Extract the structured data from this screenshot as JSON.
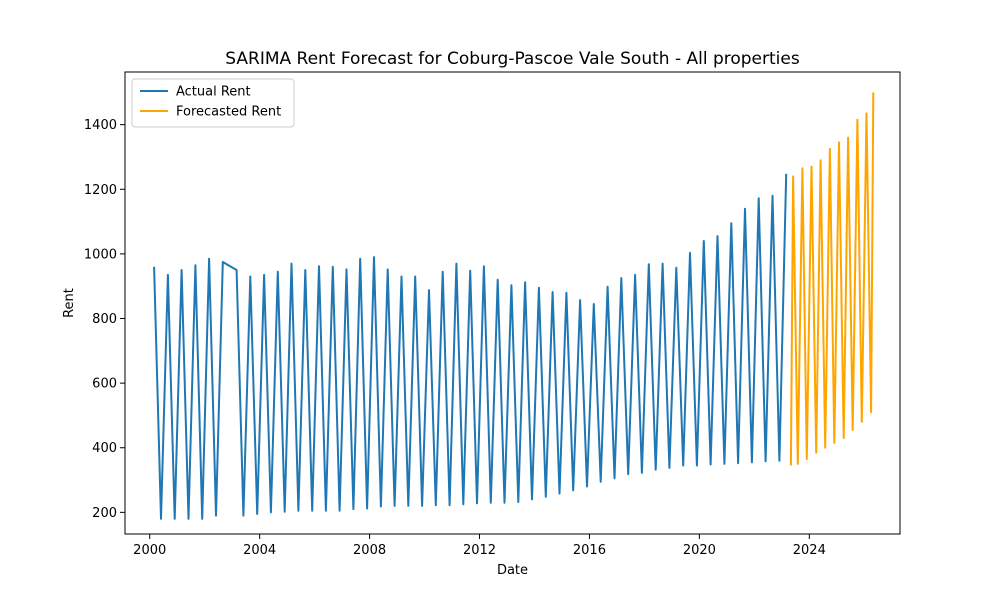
{
  "chart_data": {
    "type": "line",
    "title": "SARIMA Rent Forecast for Coburg-Pascoe Vale South - All properties",
    "xlabel": "Date",
    "ylabel": "Rent",
    "xlim": [
      1999.1,
      2027.3
    ],
    "ylim": [
      133,
      1563
    ],
    "x_ticks": [
      2000,
      2004,
      2008,
      2012,
      2016,
      2020,
      2024
    ],
    "x_tick_labels": [
      "2000",
      "2004",
      "2008",
      "2012",
      "2016",
      "2020",
      "2024"
    ],
    "y_ticks": [
      200,
      400,
      600,
      800,
      1000,
      1200,
      1400
    ],
    "y_tick_labels": [
      "200",
      "400",
      "600",
      "800",
      "1000",
      "1200",
      "1400"
    ],
    "grid": false,
    "legend_position": "top-left",
    "series": [
      {
        "name": "Actual Rent",
        "color": "#1f77b4",
        "x": [
          2000.16,
          2000.41,
          2000.66,
          2000.91,
          2001.16,
          2001.41,
          2001.66,
          2001.91,
          2002.16,
          2002.41,
          2002.66,
          2003.16,
          2003.41,
          2003.66,
          2003.91,
          2004.16,
          2004.41,
          2004.66,
          2004.91,
          2005.16,
          2005.41,
          2005.66,
          2005.91,
          2006.16,
          2006.41,
          2006.66,
          2006.91,
          2007.16,
          2007.41,
          2007.66,
          2007.91,
          2008.16,
          2008.41,
          2008.66,
          2008.91,
          2009.16,
          2009.41,
          2009.66,
          2009.91,
          2010.16,
          2010.41,
          2010.66,
          2010.91,
          2011.16,
          2011.41,
          2011.66,
          2011.91,
          2012.16,
          2012.41,
          2012.66,
          2012.91,
          2013.16,
          2013.41,
          2013.66,
          2013.91,
          2014.16,
          2014.41,
          2014.66,
          2014.91,
          2015.16,
          2015.41,
          2015.66,
          2015.91,
          2016.16,
          2016.41,
          2016.66,
          2016.91,
          2017.16,
          2017.41,
          2017.66,
          2017.91,
          2018.16,
          2018.41,
          2018.66,
          2018.91,
          2019.16,
          2019.41,
          2019.66,
          2019.91,
          2020.16,
          2020.41,
          2020.66,
          2020.91,
          2021.16,
          2021.41,
          2021.66,
          2021.91,
          2022.16,
          2022.41,
          2022.66,
          2022.91,
          2023.16
        ],
        "y": [
          960,
          180,
          935,
          180,
          950,
          180,
          965,
          180,
          985,
          190,
          975,
          950,
          190,
          930,
          195,
          935,
          200,
          945,
          202,
          970,
          205,
          950,
          205,
          962,
          205,
          960,
          205,
          952,
          210,
          985,
          212,
          990,
          218,
          952,
          220,
          930,
          220,
          930,
          220,
          888,
          222,
          945,
          222,
          970,
          225,
          948,
          228,
          962,
          230,
          920,
          230,
          903,
          232,
          912,
          240,
          895,
          248,
          882,
          258,
          880,
          268,
          857,
          280,
          845,
          295,
          898,
          305,
          925,
          318,
          935,
          322,
          968,
          332,
          970,
          338,
          957,
          345,
          1003,
          345,
          1040,
          348,
          1055,
          350,
          1095,
          352,
          1140,
          355,
          1172,
          358,
          1180,
          360,
          1248
        ]
      },
      {
        "name": "Forecasted Rent",
        "color": "#ffa500",
        "x": [
          2023.33,
          2023.41,
          2023.58,
          2023.75,
          2023.91,
          2024.08,
          2024.25,
          2024.41,
          2024.58,
          2024.75,
          2024.91,
          2025.08,
          2025.25,
          2025.41,
          2025.58,
          2025.75,
          2025.91,
          2026.08,
          2026.25,
          2026.33
        ],
        "y": [
          345,
          1240,
          350,
          1265,
          365,
          1270,
          385,
          1290,
          400,
          1325,
          415,
          1345,
          430,
          1360,
          455,
          1415,
          480,
          1435,
          510,
          1500
        ]
      }
    ]
  }
}
